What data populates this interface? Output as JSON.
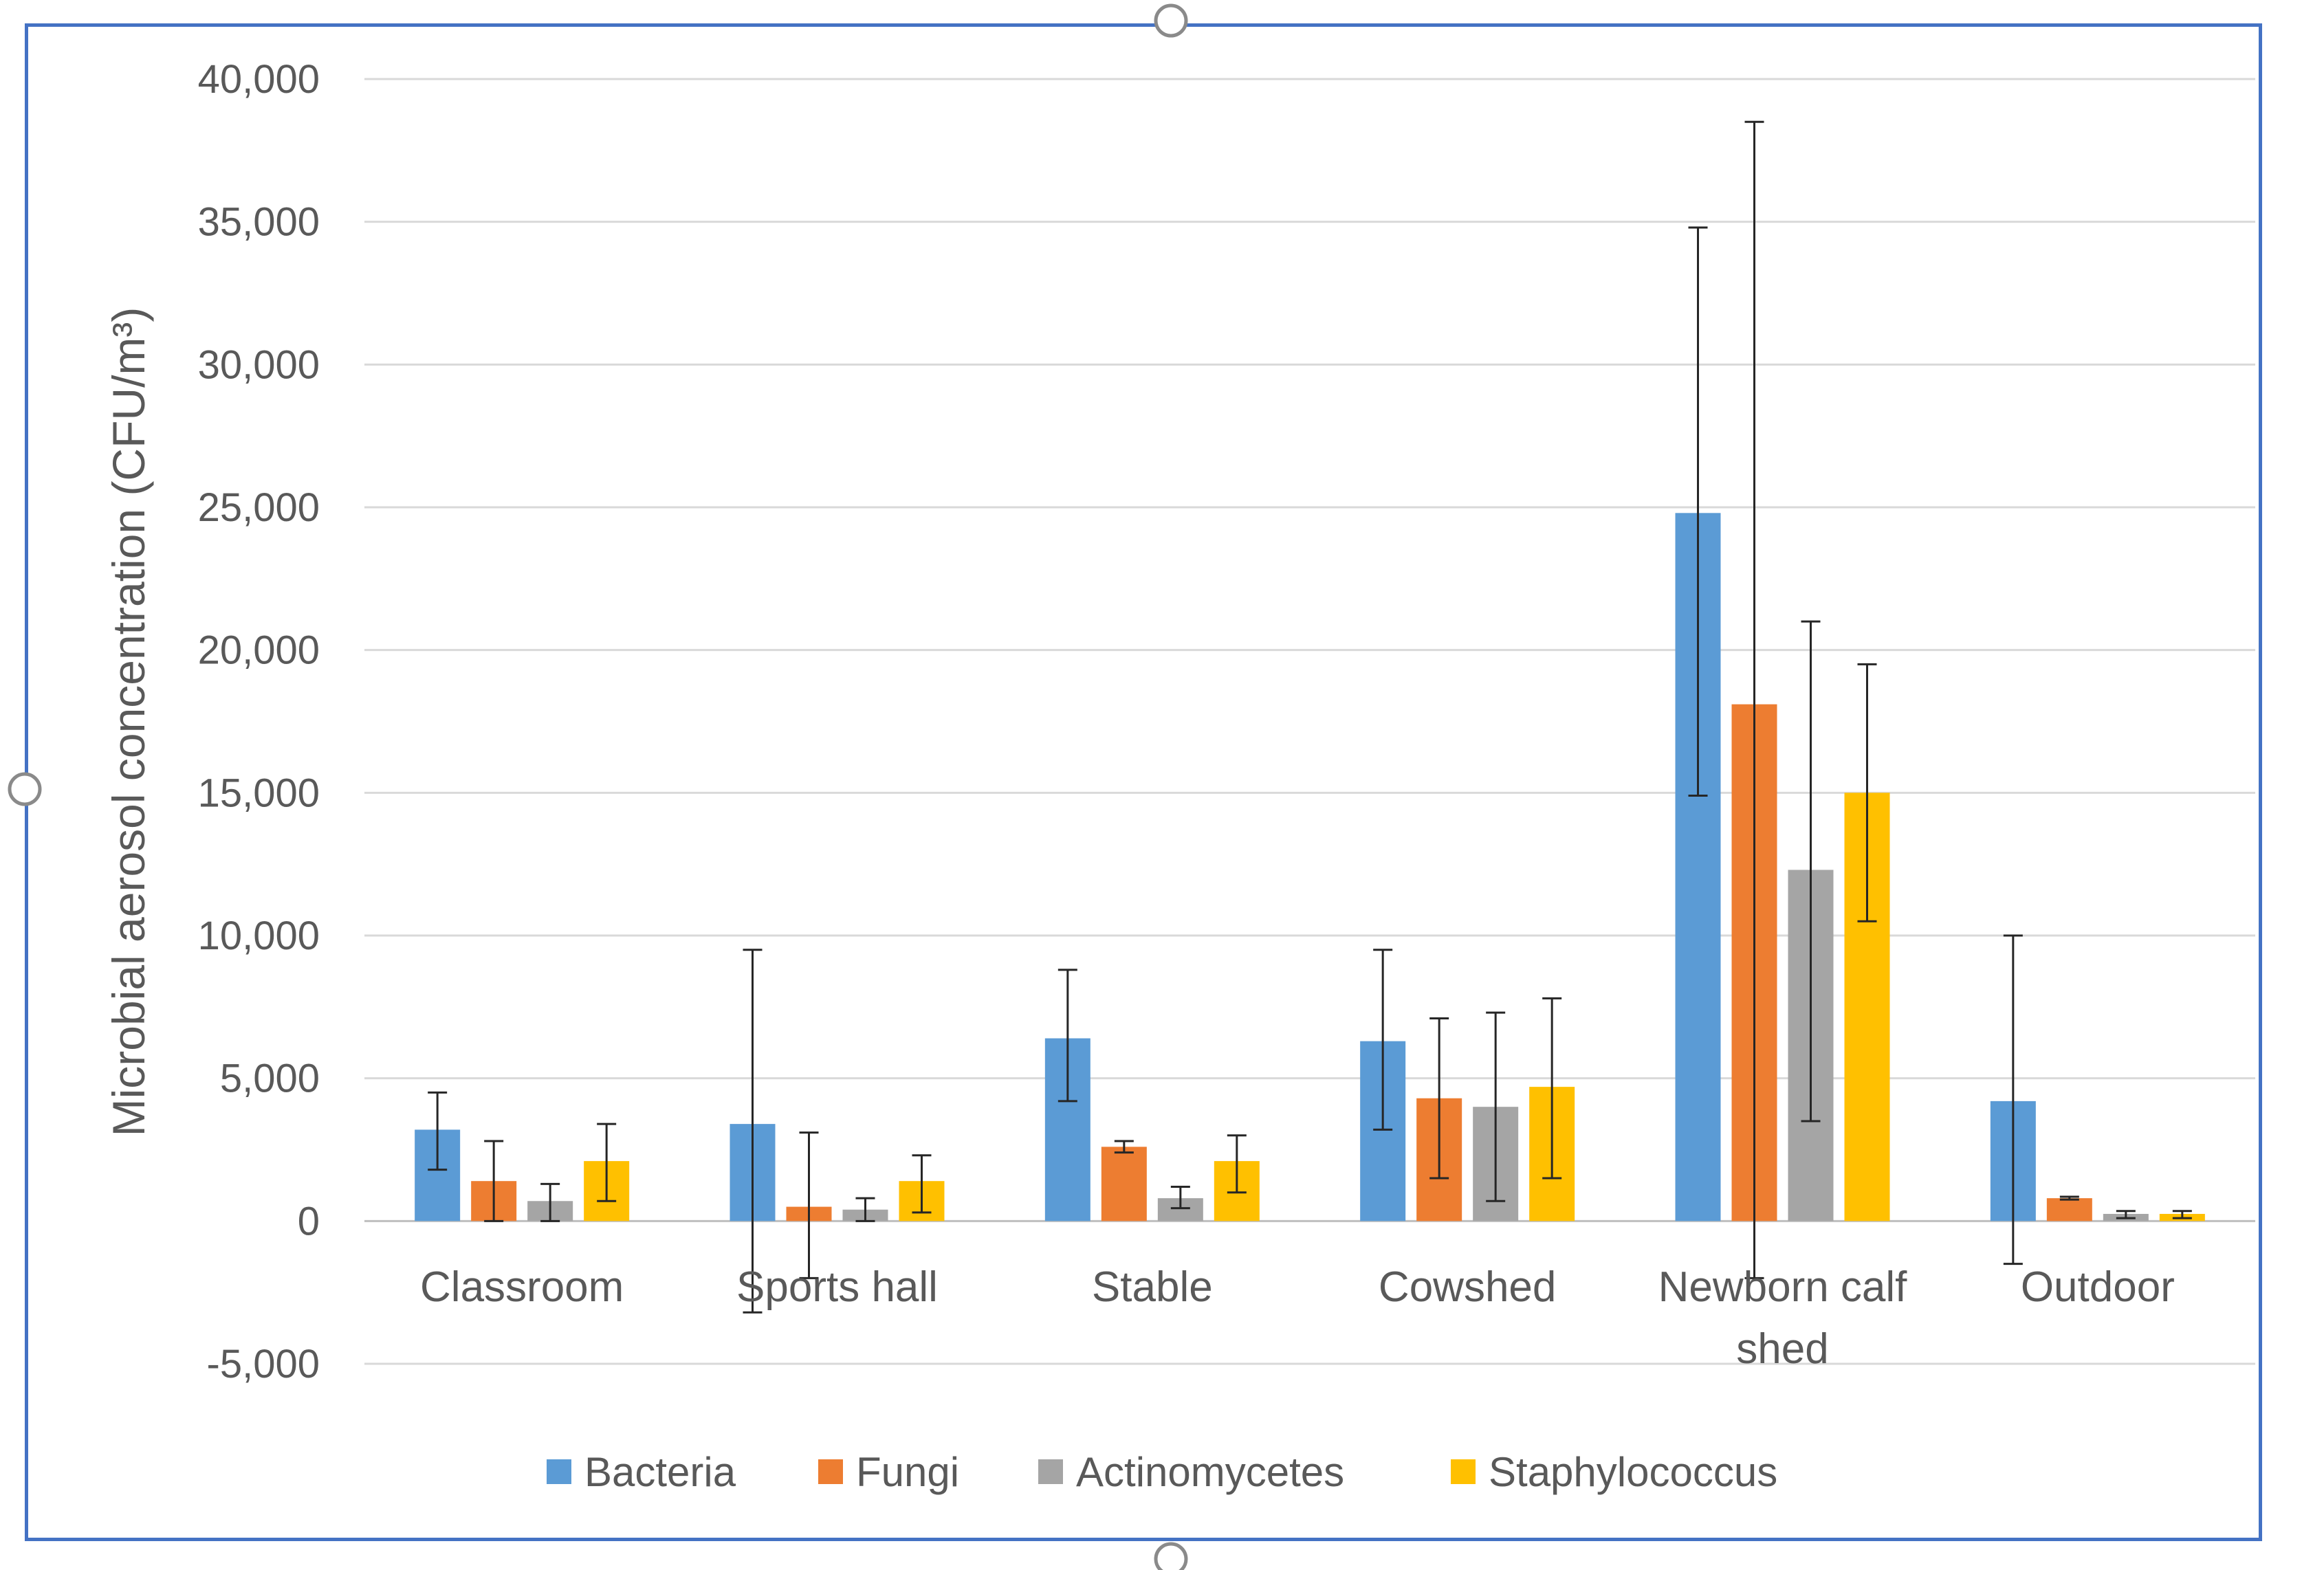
{
  "chart_data": {
    "type": "bar",
    "title": "",
    "xlabel": "",
    "ylabel": "Microbial aerosol concentration (CFU/m³)",
    "ylim": [
      -5000,
      40000
    ],
    "yticks": [
      -5000,
      0,
      5000,
      10000,
      15000,
      20000,
      25000,
      30000,
      35000,
      40000
    ],
    "ytick_labels": [
      "-5,000",
      "0",
      "5,000",
      "10,000",
      "15,000",
      "20,000",
      "25,000",
      "30,000",
      "35,000",
      "40,000"
    ],
    "grid": true,
    "legend_position": "bottom",
    "categories": [
      [
        "Classroom"
      ],
      [
        "Sports hall"
      ],
      [
        "Stable"
      ],
      [
        "Cowshed"
      ],
      [
        "Newborn calf",
        "shed"
      ],
      [
        "Outdoor"
      ]
    ],
    "series": [
      {
        "name": "Bacteria",
        "color": "#5B9BD5",
        "values": [
          3200,
          3400,
          6400,
          6300,
          24800,
          4200
        ],
        "err_low": [
          1800,
          -3200,
          4200,
          3200,
          14900,
          -1500
        ],
        "err_high": [
          4500,
          9500,
          8800,
          9500,
          34800,
          10000
        ]
      },
      {
        "name": "Fungi",
        "color": "#ED7D31",
        "values": [
          1400,
          500,
          2600,
          4300,
          18100,
          800
        ],
        "err_low": [
          0,
          -2000,
          2400,
          1500,
          -2000,
          750
        ],
        "err_high": [
          2800,
          3100,
          2800,
          7100,
          38500,
          850
        ]
      },
      {
        "name": "Actinomycetes",
        "color": "#A5A5A5",
        "values": [
          700,
          400,
          800,
          4000,
          12300,
          250
        ],
        "err_low": [
          0,
          0,
          450,
          700,
          3500,
          100
        ],
        "err_high": [
          1300,
          800,
          1200,
          7300,
          21000,
          350
        ]
      },
      {
        "name": "Staphylococcus",
        "color": "#FFC000",
        "values": [
          2100,
          1400,
          2100,
          4700,
          15000,
          250
        ],
        "err_low": [
          700,
          300,
          1000,
          1500,
          10500,
          100
        ],
        "err_high": [
          3400,
          2300,
          3000,
          7800,
          19500,
          350
        ]
      }
    ]
  }
}
